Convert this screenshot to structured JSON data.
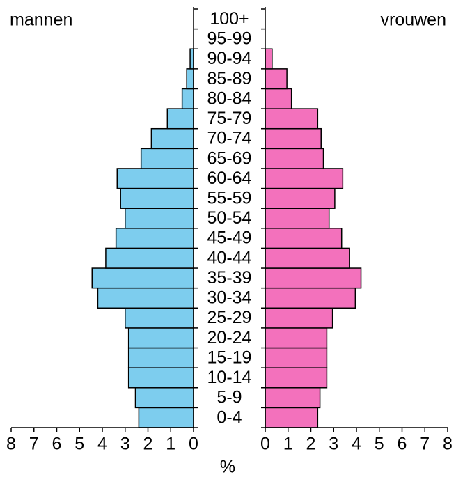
{
  "chart_data": {
    "type": "pyramid",
    "x_label": "%",
    "categories": [
      "0-4",
      "5-9",
      "10-14",
      "15-19",
      "20-24",
      "25-29",
      "30-34",
      "35-39",
      "40-44",
      "45-49",
      "50-54",
      "55-59",
      "60-64",
      "65-69",
      "70-74",
      "75-79",
      "80-84",
      "85-89",
      "90-94",
      "95-99",
      "100+"
    ],
    "series": [
      {
        "name": "mannen",
        "color": "#7dcdee",
        "side": "left",
        "values": [
          2.4,
          2.55,
          2.85,
          2.85,
          2.85,
          3.0,
          4.2,
          4.45,
          3.85,
          3.4,
          3.0,
          3.2,
          3.35,
          2.3,
          1.85,
          1.15,
          0.5,
          0.3,
          0.15,
          0,
          0
        ]
      },
      {
        "name": "vrouwen",
        "color": "#f371bc",
        "side": "right",
        "values": [
          2.3,
          2.4,
          2.7,
          2.7,
          2.7,
          2.95,
          3.95,
          4.2,
          3.7,
          3.35,
          2.8,
          3.05,
          3.4,
          2.55,
          2.45,
          2.3,
          1.15,
          0.95,
          0.3,
          0,
          0
        ]
      }
    ],
    "xlim": [
      0,
      8
    ],
    "xticks": [
      0,
      1,
      2,
      3,
      4,
      5,
      6,
      7,
      8
    ]
  }
}
